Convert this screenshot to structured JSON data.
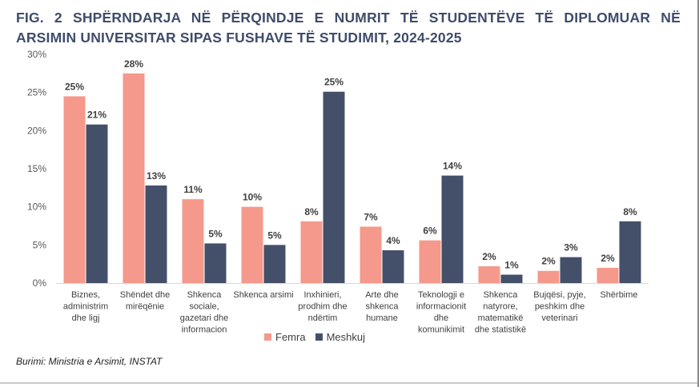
{
  "title": {
    "line1": "FIG. 2 SHPËRNDARJA NË PËRQINDJE E NUMRIT TË STUDENTËVE TË DIPLOMUAR NË",
    "line2": "ARSIMIN UNIVERSITAR SIPAS FUSHAVE TË STUDIMIT, 2024-2025"
  },
  "source": "Burimi: Ministria e Arsimit, INSTAT",
  "colors": {
    "femra": "#f4998b",
    "meshkuj": "#44506a",
    "axis_text": "#595959",
    "grid": "#d9d9d9"
  },
  "chart_data": {
    "type": "bar",
    "categories": [
      [
        "Biznes,",
        "administrim",
        "dhe ligj"
      ],
      [
        "Shëndet dhe",
        "mirëqënie"
      ],
      [
        "Shkenca",
        "sociale,",
        "gazetari dhe",
        "informacion"
      ],
      [
        "Shkenca arsimi"
      ],
      [
        "Inxhinieri,",
        "prodhim dhe",
        "ndërtim"
      ],
      [
        "Arte dhe",
        "shkenca",
        "humane"
      ],
      [
        "Teknologji e",
        "informacionit",
        "dhe",
        "komunikimit"
      ],
      [
        "Shkenca",
        "natyrore,",
        "matematikë",
        "dhe statistikë"
      ],
      [
        "Bujqësi, pyje,",
        "peshkim dhe",
        "veterinari"
      ],
      [
        "Shërbime"
      ]
    ],
    "series": [
      {
        "name": "Femra",
        "values": [
          24.5,
          27.5,
          11,
          10,
          8.1,
          7.4,
          5.6,
          2.2,
          1.6,
          2.0
        ],
        "labels": [
          "25%",
          "28%",
          "11%",
          "10%",
          "8%",
          "7%",
          "6%",
          "2%",
          "2%",
          "2%"
        ]
      },
      {
        "name": "Meshkuj",
        "values": [
          20.8,
          12.8,
          5.2,
          5.0,
          25.1,
          4.3,
          14.1,
          1.1,
          3.4,
          8.1
        ],
        "labels": [
          "21%",
          "13%",
          "5%",
          "5%",
          "25%",
          "4%",
          "14%",
          "1%",
          "3%",
          "8%"
        ]
      }
    ],
    "ylim": [
      0,
      30
    ],
    "yticks": [
      0,
      5,
      10,
      15,
      20,
      25,
      30
    ],
    "ytick_labels": [
      "0%",
      "5%",
      "10%",
      "15%",
      "20%",
      "25%",
      "30%"
    ],
    "grid": false,
    "legend": "bottom-center"
  }
}
